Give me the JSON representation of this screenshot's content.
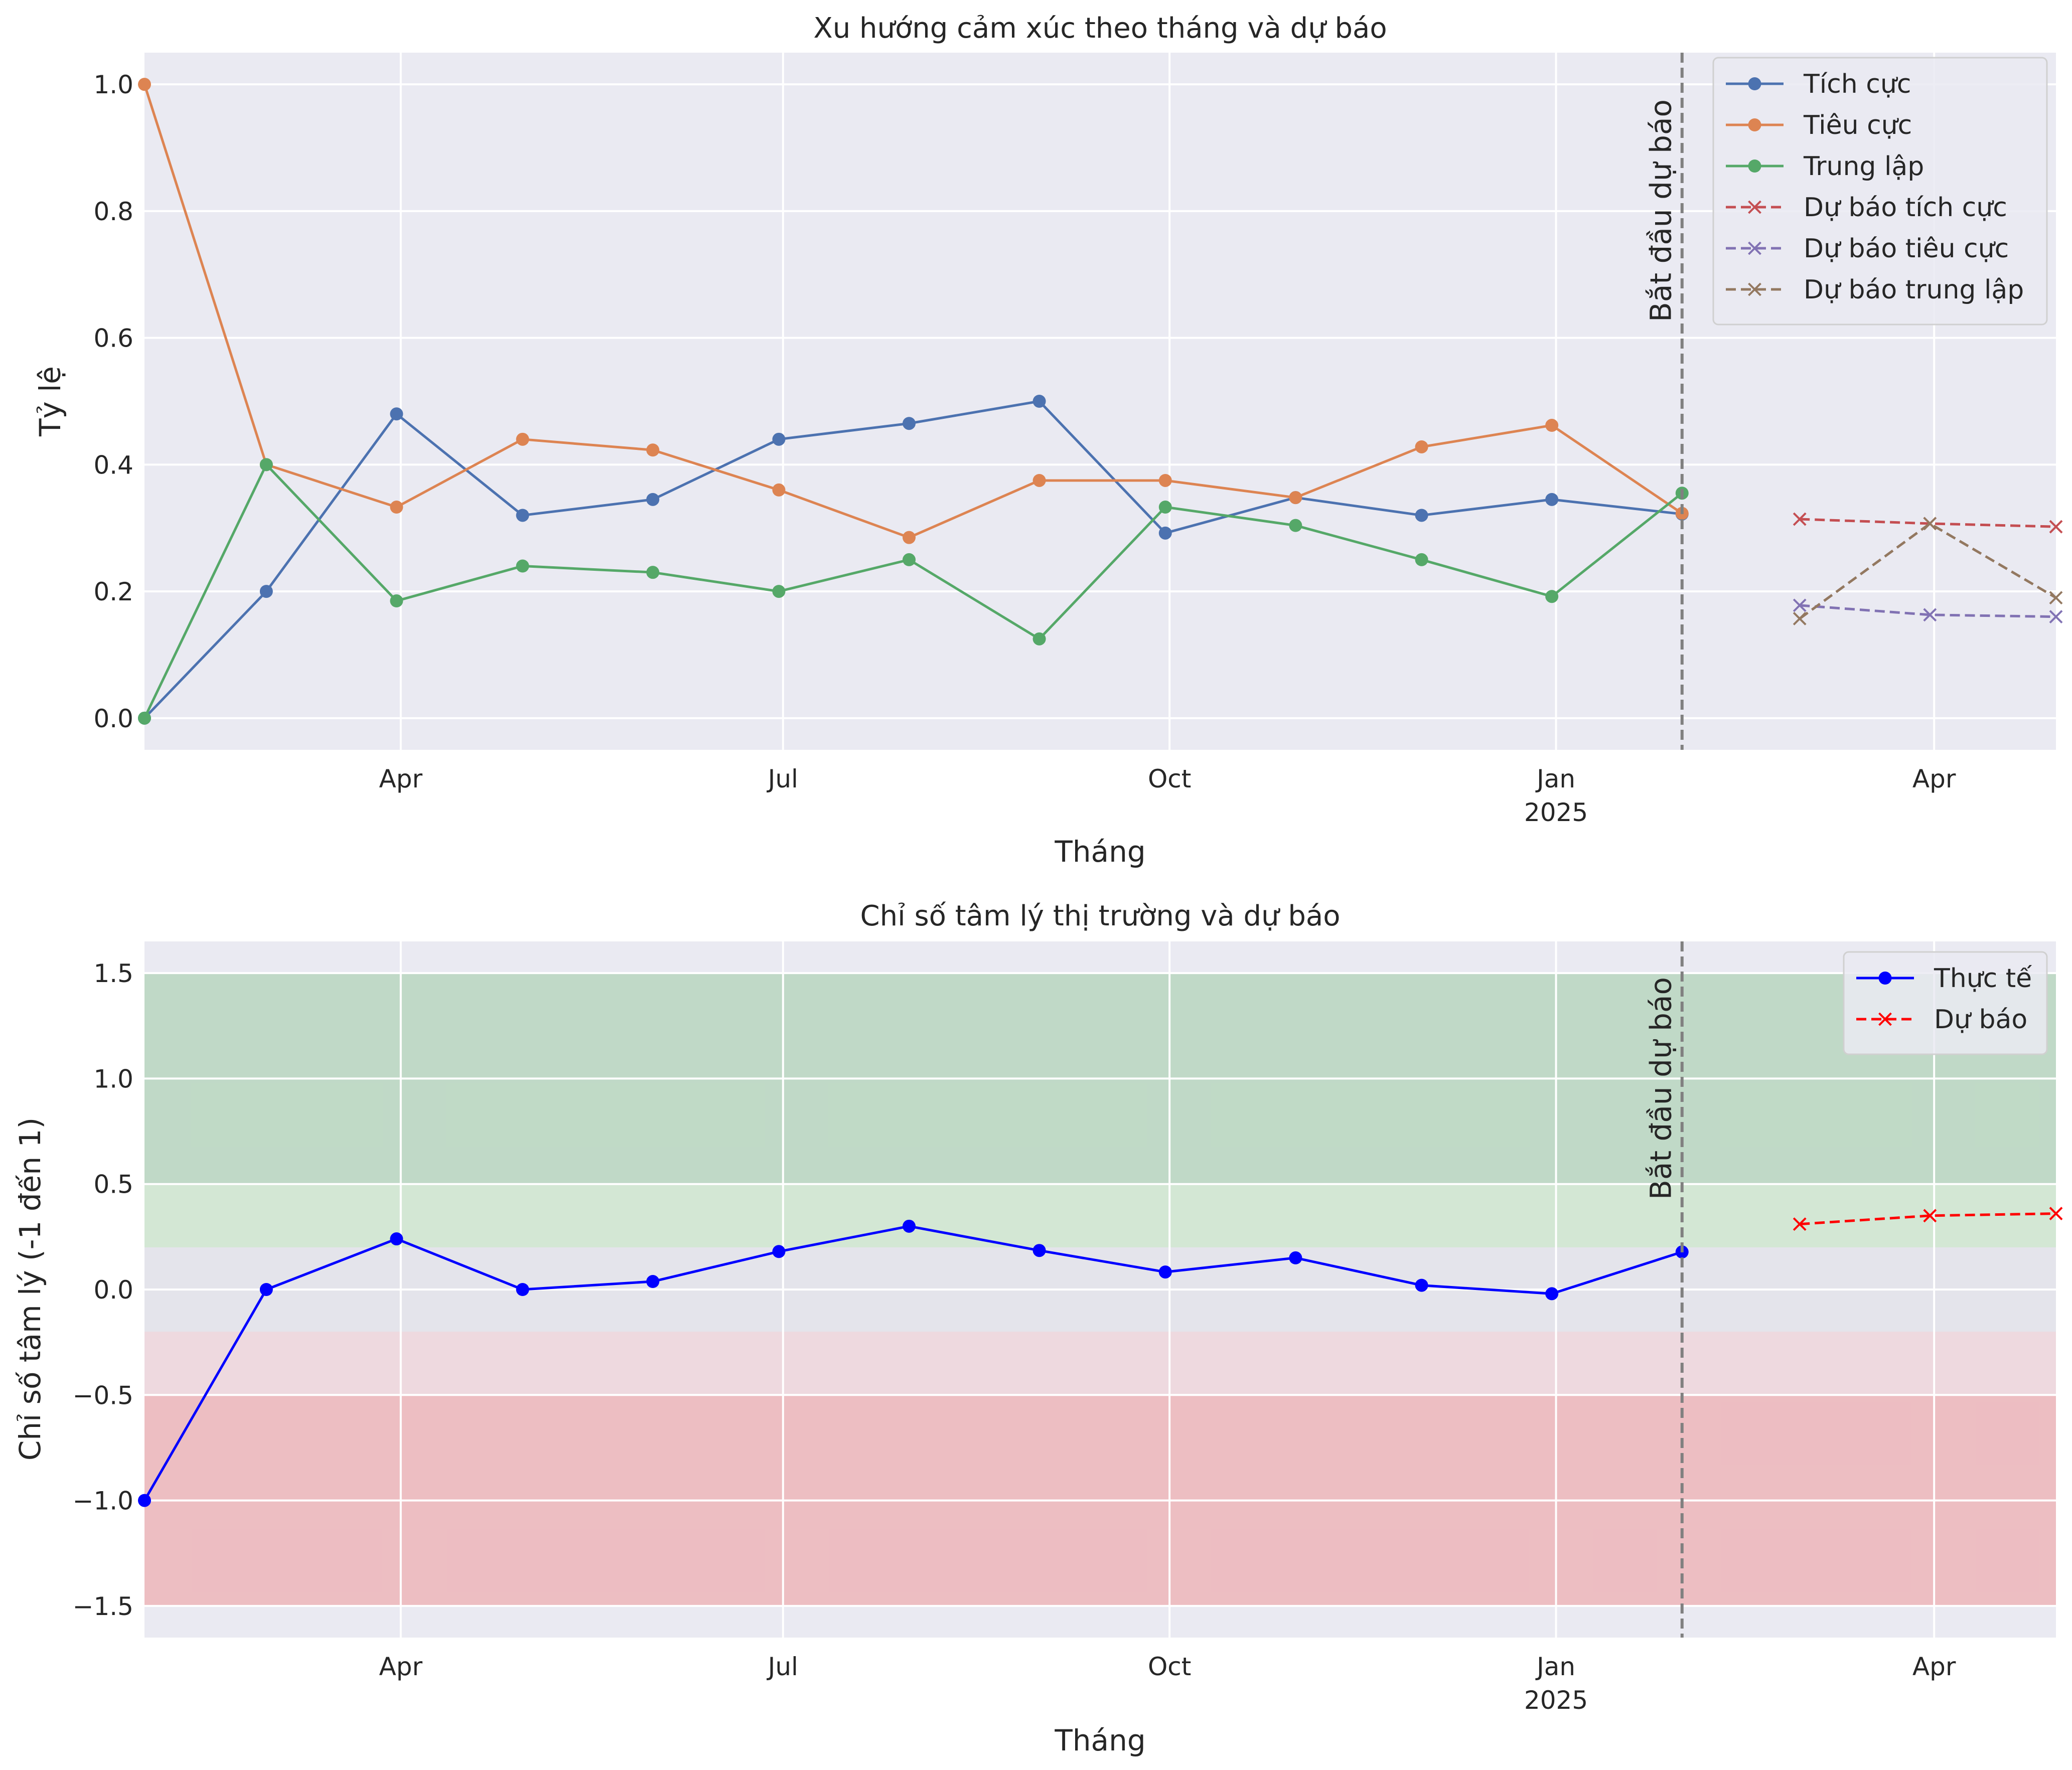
{
  "chart_data": [
    {
      "type": "line",
      "title": "Xu hướng cảm xúc theo tháng và dự báo",
      "xlabel": "Tháng",
      "ylabel": "Tỷ lệ",
      "ylim": [
        -0.05,
        1.05
      ],
      "yticks": [
        "0.0",
        "0.2",
        "0.4",
        "0.6",
        "0.8",
        "1.0"
      ],
      "xticks": [
        {
          "date": "2024-04-01",
          "label": "Apr"
        },
        {
          "date": "2024-07-01",
          "label": "Jul"
        },
        {
          "date": "2024-10-01",
          "label": "Oct"
        },
        {
          "date": "2025-01-01",
          "label": "Jan",
          "sublabel": "2025"
        },
        {
          "date": "2025-04-01",
          "label": "Apr"
        }
      ],
      "xrange": [
        "2024-01-31",
        "2025-04-30"
      ],
      "grid": true,
      "legend_position": "top-right",
      "vline": {
        "date": "2025-01-31",
        "label": "Bắt đầu dự báo"
      },
      "series": [
        {
          "name": "Tích cực",
          "color": "#4c72b0",
          "style": "solid",
          "marker": "circle",
          "x": [
            "2024-01-31",
            "2024-02-29",
            "2024-03-31",
            "2024-04-30",
            "2024-05-31",
            "2024-06-30",
            "2024-07-31",
            "2024-08-31",
            "2024-09-30",
            "2024-10-31",
            "2024-11-30",
            "2024-12-31",
            "2025-01-31"
          ],
          "y": [
            0.0,
            0.2,
            0.48,
            0.32,
            0.345,
            0.44,
            0.465,
            0.5,
            0.292,
            0.348,
            0.32,
            0.345,
            0.322
          ]
        },
        {
          "name": "Tiêu cực",
          "color": "#dd8452",
          "style": "solid",
          "marker": "circle",
          "x": [
            "2024-01-31",
            "2024-02-29",
            "2024-03-31",
            "2024-04-30",
            "2024-05-31",
            "2024-06-30",
            "2024-07-31",
            "2024-08-31",
            "2024-09-30",
            "2024-10-31",
            "2024-11-30",
            "2024-12-31",
            "2025-01-31"
          ],
          "y": [
            1.0,
            0.4,
            0.333,
            0.44,
            0.423,
            0.36,
            0.285,
            0.375,
            0.375,
            0.348,
            0.428,
            0.462,
            0.323
          ]
        },
        {
          "name": "Trung lập",
          "color": "#55a868",
          "style": "solid",
          "marker": "circle",
          "x": [
            "2024-01-31",
            "2024-02-29",
            "2024-03-31",
            "2024-04-30",
            "2024-05-31",
            "2024-06-30",
            "2024-07-31",
            "2024-08-31",
            "2024-09-30",
            "2024-10-31",
            "2024-11-30",
            "2024-12-31",
            "2025-01-31"
          ],
          "y": [
            0.0,
            0.4,
            0.185,
            0.24,
            0.23,
            0.2,
            0.25,
            0.125,
            0.333,
            0.304,
            0.25,
            0.192,
            0.355
          ]
        },
        {
          "name": "Dự báo tích cực",
          "color": "#c44e52",
          "style": "dashed",
          "marker": "x",
          "x": [
            "2025-02-28",
            "2025-03-31",
            "2025-04-30"
          ],
          "y": [
            0.314,
            0.307,
            0.302
          ]
        },
        {
          "name": "Dự báo tiêu cực",
          "color": "#8172b3",
          "style": "dashed",
          "marker": "x",
          "x": [
            "2025-02-28",
            "2025-03-31",
            "2025-04-30"
          ],
          "y": [
            0.178,
            0.163,
            0.16
          ]
        },
        {
          "name": "Dự báo trung lập",
          "color": "#937860",
          "style": "dashed",
          "marker": "x",
          "x": [
            "2025-02-28",
            "2025-03-31",
            "2025-04-30"
          ],
          "y": [
            0.157,
            0.307,
            0.19
          ]
        }
      ]
    },
    {
      "type": "line",
      "title": "Chỉ số tâm lý thị trường và dự báo",
      "xlabel": "Tháng",
      "ylabel": "Chỉ số tâm lý (-1 đến 1)",
      "ylim": [
        -1.65,
        1.65
      ],
      "yticks": [
        "−1.5",
        "−1.0",
        "−0.5",
        "0.0",
        "0.5",
        "1.0",
        "1.5"
      ],
      "xticks": [
        {
          "date": "2024-04-01",
          "label": "Apr"
        },
        {
          "date": "2024-07-01",
          "label": "Jul"
        },
        {
          "date": "2024-10-01",
          "label": "Oct"
        },
        {
          "date": "2025-01-01",
          "label": "Jan",
          "sublabel": "2025"
        },
        {
          "date": "2025-04-01",
          "label": "Apr"
        }
      ],
      "xrange": [
        "2024-01-31",
        "2025-04-30"
      ],
      "grid": true,
      "legend_position": "top-right",
      "vline": {
        "date": "2025-01-31",
        "label": "Bắt đầu dự báo"
      },
      "bands": [
        {
          "from": 0.5,
          "to": 1.5,
          "color": "#2ca02c",
          "opacity": 0.22
        },
        {
          "from": 0.2,
          "to": 0.5,
          "color": "#98df8a",
          "opacity": 0.28
        },
        {
          "from": -0.2,
          "to": 0.2,
          "color": "#d3d3d3",
          "opacity": 0.22
        },
        {
          "from": -0.5,
          "to": -0.2,
          "color": "#ff9896",
          "opacity": 0.2
        },
        {
          "from": -1.5,
          "to": -0.5,
          "color": "#f08080",
          "opacity": 0.42
        }
      ],
      "series": [
        {
          "name": "Thực tế",
          "color": "#0000ff",
          "style": "solid",
          "marker": "circle",
          "x": [
            "2024-01-31",
            "2024-02-29",
            "2024-03-31",
            "2024-04-30",
            "2024-05-31",
            "2024-06-30",
            "2024-07-31",
            "2024-08-31",
            "2024-09-30",
            "2024-10-31",
            "2024-11-30",
            "2024-12-31",
            "2025-01-31"
          ],
          "y": [
            -1.0,
            0.0,
            0.24,
            0.0,
            0.038,
            0.18,
            0.3,
            0.185,
            0.083,
            0.15,
            0.02,
            -0.02,
            0.178
          ]
        },
        {
          "name": "Dự báo",
          "color": "#ff0000",
          "style": "dashed",
          "marker": "x",
          "x": [
            "2025-02-28",
            "2025-03-31",
            "2025-04-30"
          ],
          "y": [
            0.31,
            0.35,
            0.36
          ]
        }
      ]
    }
  ]
}
